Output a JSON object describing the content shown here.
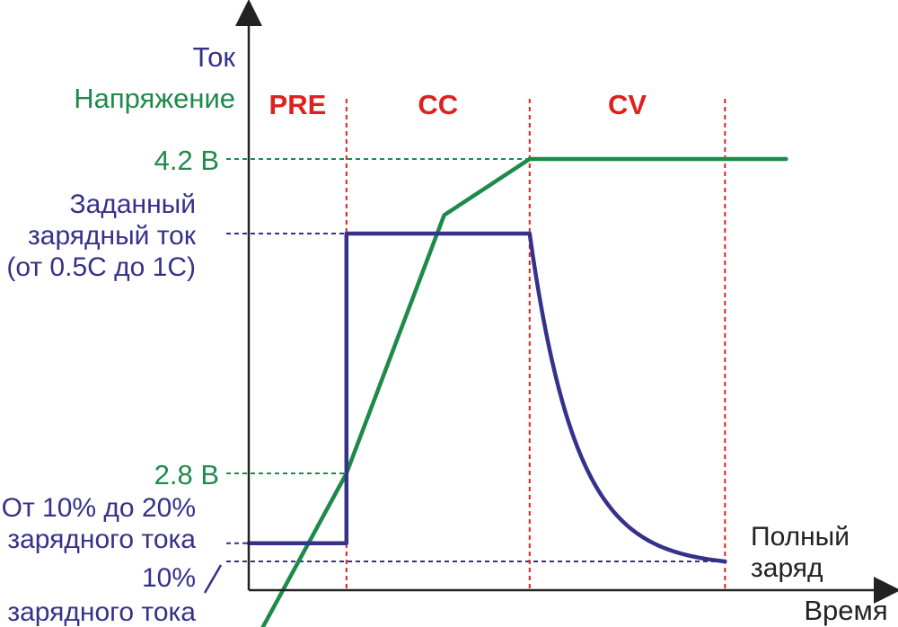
{
  "colors": {
    "current": "#36318a",
    "voltage": "#1e8a4a",
    "phase": "#e0201e",
    "axis": "#222222",
    "text": "#222222"
  },
  "axes": {
    "y_current_label": "Ток",
    "y_voltage_label": "Напряжение",
    "x_label": "Время"
  },
  "chart_data": {
    "type": "line",
    "title": "",
    "xlabel": "Время",
    "ylabel": [
      "Ток",
      "Напряжение"
    ],
    "xlim": [
      0,
      100
    ],
    "phases": [
      {
        "label": "PRE",
        "start": 0,
        "end": 16
      },
      {
        "label": "CC",
        "start": 16,
        "end": 46
      },
      {
        "label": "CV",
        "start": 46,
        "end": 78
      }
    ],
    "voltage_levels": [
      {
        "label": "4.2 В",
        "value": 4.2
      },
      {
        "label": "2.8 В",
        "value": 2.8
      }
    ],
    "current_levels": [
      {
        "label_lines": [
          "Заданный",
          "зарядный ток",
          "(от 0.5C до 1C)"
        ],
        "value": 1.0
      },
      {
        "label_lines": [
          "От 10% до 20%",
          "зарядного тока"
        ],
        "value": 0.15
      },
      {
        "label_lines": [
          "10%",
          "зарядного тока"
        ],
        "value": 0.1
      }
    ],
    "series": [
      {
        "name": "Ток",
        "color": "#36318a",
        "segments": [
          {
            "kind": "line",
            "points": [
              [
                0,
                0.15
              ],
              [
                16,
                0.15
              ],
              [
                16,
                1.0
              ],
              [
                46,
                1.0
              ]
            ]
          },
          {
            "kind": "exp-decay",
            "from": [
              46,
              1.0
            ],
            "to": [
              78,
              0.1
            ]
          }
        ]
      },
      {
        "name": "Напряжение",
        "color": "#1e8a4a",
        "points": [
          [
            0,
            2.0
          ],
          [
            16,
            2.8
          ],
          [
            32,
            3.95
          ],
          [
            46,
            4.2
          ],
          [
            88,
            4.2
          ]
        ]
      }
    ],
    "annotations": [
      {
        "text_lines": [
          "Полный",
          "заряд"
        ],
        "x": 78
      }
    ]
  }
}
